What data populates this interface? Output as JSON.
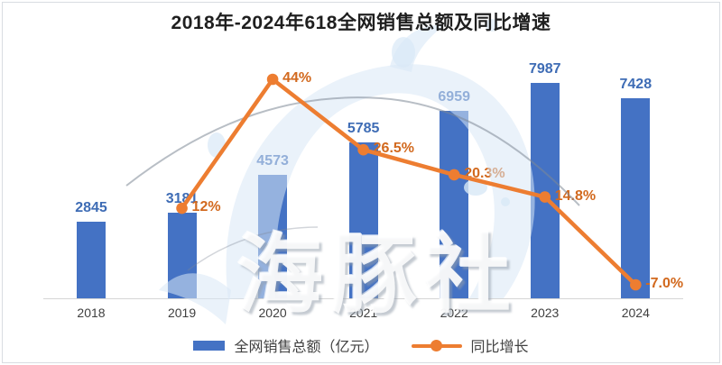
{
  "title": "2018年-2024年618全网销售总额及同比增速",
  "watermark_text": "海豚社",
  "colors": {
    "bar": "#4472C4",
    "bar_label": "#3E6CB5",
    "line": "#ED7D31",
    "pct_label": "#D2691E",
    "axis_line": "#d6d6d6",
    "axis_label": "#3f3f3f",
    "title_text": "#1f1f1f",
    "legend_text": "#404040"
  },
  "legend": {
    "items": [
      {
        "label": "全网销售总额（亿元）",
        "marker": "bar"
      },
      {
        "label": "同比增长",
        "marker": "line"
      }
    ]
  },
  "chart_data": {
    "type": "bar+line combo",
    "title": "2018年-2024年618全网销售总额及同比增速",
    "categories": [
      "2018",
      "2019",
      "2020",
      "2021",
      "2022",
      "2023",
      "2024"
    ],
    "series": [
      {
        "name": "全网销售总额（亿元）",
        "type": "bar",
        "unit": "亿元",
        "values": [
          2845,
          3181,
          4573,
          5785,
          6959,
          7987,
          7428
        ]
      },
      {
        "name": "同比增长",
        "type": "line",
        "unit": "%",
        "values": [
          null,
          12,
          44,
          26.5,
          20.3,
          14.8,
          -7.0
        ],
        "point_labels": [
          null,
          "12%",
          "44%",
          "26.5%",
          "20.3%",
          "14.8%",
          "-7.0%"
        ]
      }
    ],
    "legend_position": "bottom",
    "grid": false,
    "value_axis_visible": false,
    "data_labels_visible": true
  }
}
